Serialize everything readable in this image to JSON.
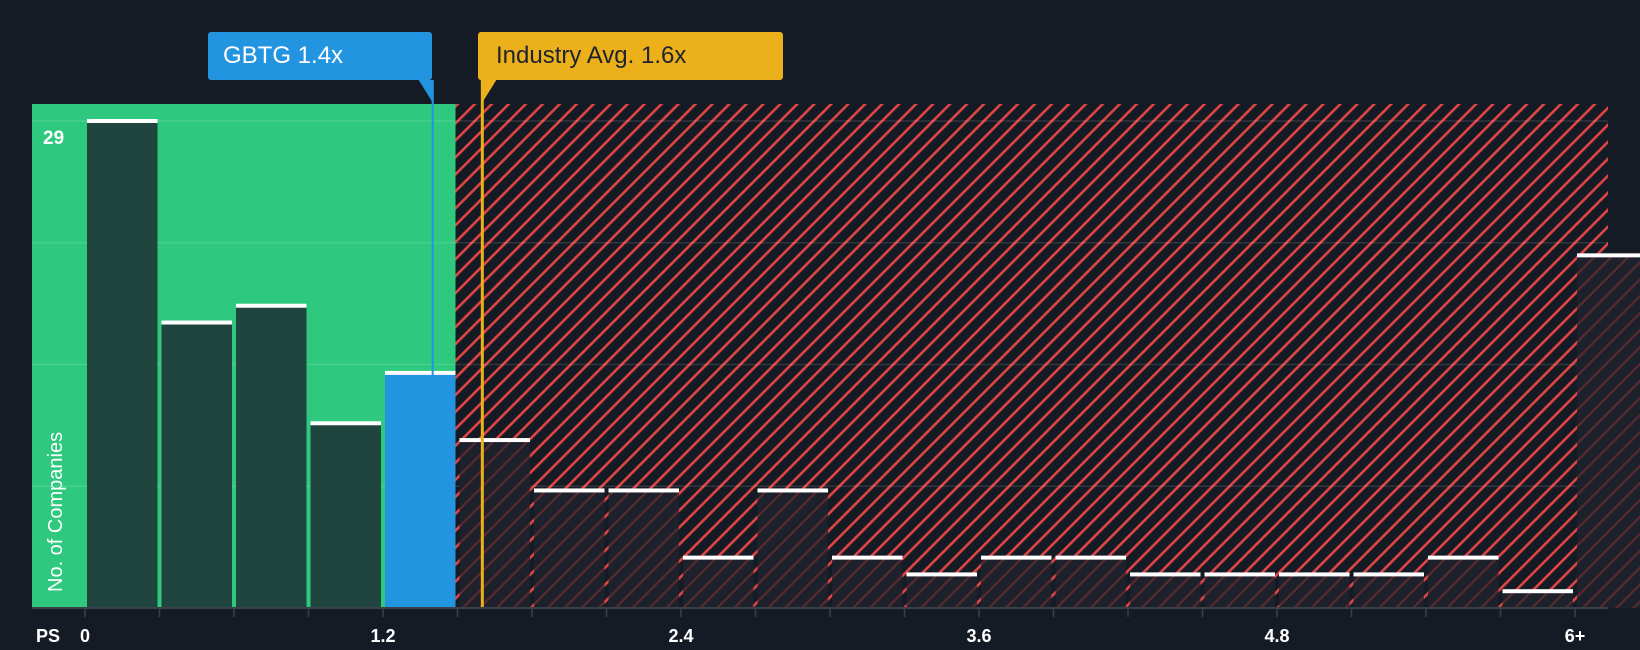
{
  "chart_data": {
    "type": "bar",
    "title": "",
    "xlabel": "PS",
    "ylabel": "No. of Companies",
    "x_tick_labels": [
      "0",
      "1.2",
      "2.4",
      "3.6",
      "4.8",
      "6+"
    ],
    "y_tick_labels": [
      "29"
    ],
    "ylim": [
      0,
      29
    ],
    "bin_width": 0.3,
    "categories": [
      "0-0.3",
      "0.3-0.6",
      "0.6-0.9",
      "0.9-1.2",
      "1.2-1.5",
      "1.5-1.8",
      "1.8-2.1",
      "2.1-2.4",
      "2.4-2.7",
      "2.7-3.0",
      "3.0-3.3",
      "3.3-3.6",
      "3.6-3.9",
      "3.9-4.2",
      "4.2-4.5",
      "4.5-4.8",
      "4.8-5.1",
      "5.1-5.4",
      "5.4-5.7",
      "5.7-6.0",
      "6+"
    ],
    "values": [
      29,
      17,
      18,
      11,
      14,
      10,
      7,
      7,
      3,
      7,
      3,
      2,
      3,
      3,
      2,
      2,
      2,
      2,
      3,
      1,
      21
    ],
    "highlight_index": 4,
    "annotations": [
      {
        "label": "GBTG 1.4x",
        "x": 1.4,
        "color": "#2394e0"
      },
      {
        "label": "Industry Avg. 1.6x",
        "x": 1.6,
        "color": "#ebb01a"
      }
    ],
    "regions": [
      {
        "name": "undervalued",
        "x_range": [
          0,
          1.5
        ],
        "color": "#2ec97e"
      },
      {
        "name": "overvalued",
        "x_range": [
          1.5,
          6.15
        ],
        "color": "#e04545",
        "pattern": "diagonal-hatch"
      }
    ],
    "grid": true,
    "legend": null
  },
  "labels": {
    "company": "GBTG 1.4x",
    "industry": "Industry Avg. 1.6x",
    "y_axis": "No. of Companies",
    "x_axis": "PS",
    "y_max": "29"
  },
  "colors": {
    "background": "#151b24",
    "green_zone": "#2ec97e",
    "bar_dark": "#20453e",
    "highlight": "#2394e0",
    "industry": "#ebb01a",
    "hatch": "#e04545"
  }
}
